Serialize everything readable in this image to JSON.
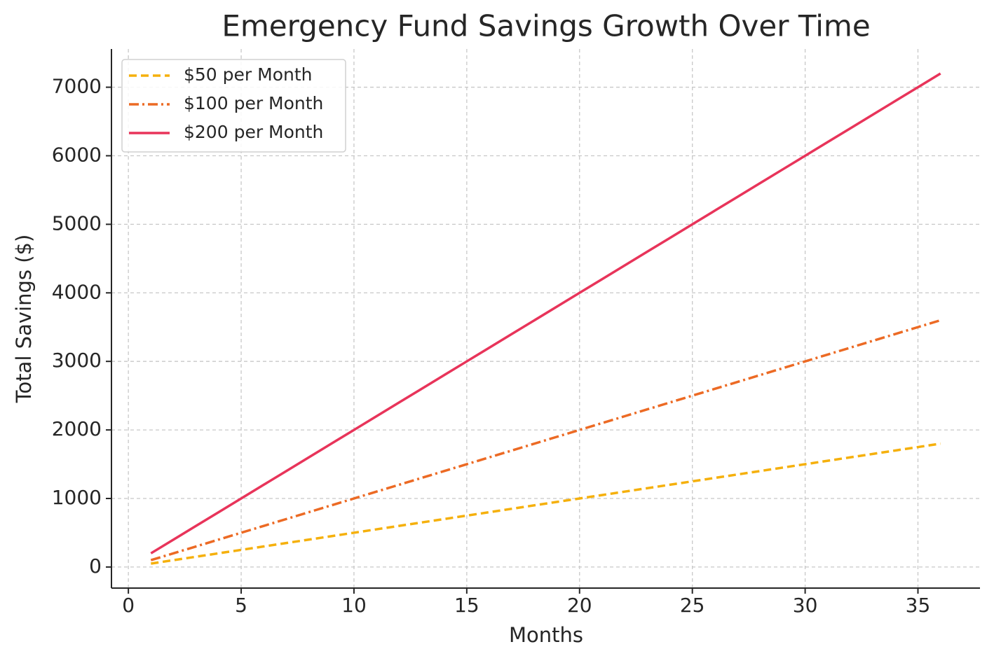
{
  "chart_data": {
    "type": "line",
    "title": "Emergency Fund Savings Growth Over Time",
    "x_label": "Months",
    "y_label": "Total Savings ($)",
    "x": [
      1,
      2,
      3,
      4,
      5,
      6,
      7,
      8,
      9,
      10,
      11,
      12,
      13,
      14,
      15,
      16,
      17,
      18,
      19,
      20,
      21,
      22,
      23,
      24,
      25,
      26,
      27,
      28,
      29,
      30,
      31,
      32,
      33,
      34,
      35,
      36
    ],
    "series": [
      {
        "name": "$50 per Month",
        "color": "#f5b00c",
        "dash": "dashed",
        "values": [
          50,
          100,
          150,
          200,
          250,
          300,
          350,
          400,
          450,
          500,
          550,
          600,
          650,
          700,
          750,
          800,
          850,
          900,
          950,
          1000,
          1050,
          1100,
          1150,
          1200,
          1250,
          1300,
          1350,
          1400,
          1450,
          1500,
          1550,
          1600,
          1650,
          1700,
          1750,
          1800
        ]
      },
      {
        "name": "$100 per Month",
        "color": "#ec6a24",
        "dash": "dashdot",
        "values": [
          100,
          200,
          300,
          400,
          500,
          600,
          700,
          800,
          900,
          1000,
          1100,
          1200,
          1300,
          1400,
          1500,
          1600,
          1700,
          1800,
          1900,
          2000,
          2100,
          2200,
          2300,
          2400,
          2500,
          2600,
          2700,
          2800,
          2900,
          3000,
          3100,
          3200,
          3300,
          3400,
          3500,
          3600
        ]
      },
      {
        "name": "$200 per Month",
        "color": "#e8345a",
        "dash": "solid",
        "values": [
          200,
          400,
          600,
          800,
          1000,
          1200,
          1400,
          1600,
          1800,
          2000,
          2200,
          2400,
          2600,
          2800,
          3000,
          3200,
          3400,
          3600,
          3800,
          4000,
          4200,
          4400,
          4600,
          4800,
          5000,
          5200,
          5400,
          5600,
          5800,
          6000,
          6200,
          6400,
          6600,
          6800,
          7000,
          7200
        ]
      }
    ],
    "xlim": [
      -0.75,
      37.75
    ],
    "xticks": [
      0,
      5,
      10,
      15,
      20,
      25,
      30,
      35
    ],
    "ylim": [
      -307.5,
      7557.5
    ],
    "yticks": [
      0,
      1000,
      2000,
      3000,
      4000,
      5000,
      6000,
      7000
    ],
    "grid": true,
    "legend": "upper-left"
  }
}
